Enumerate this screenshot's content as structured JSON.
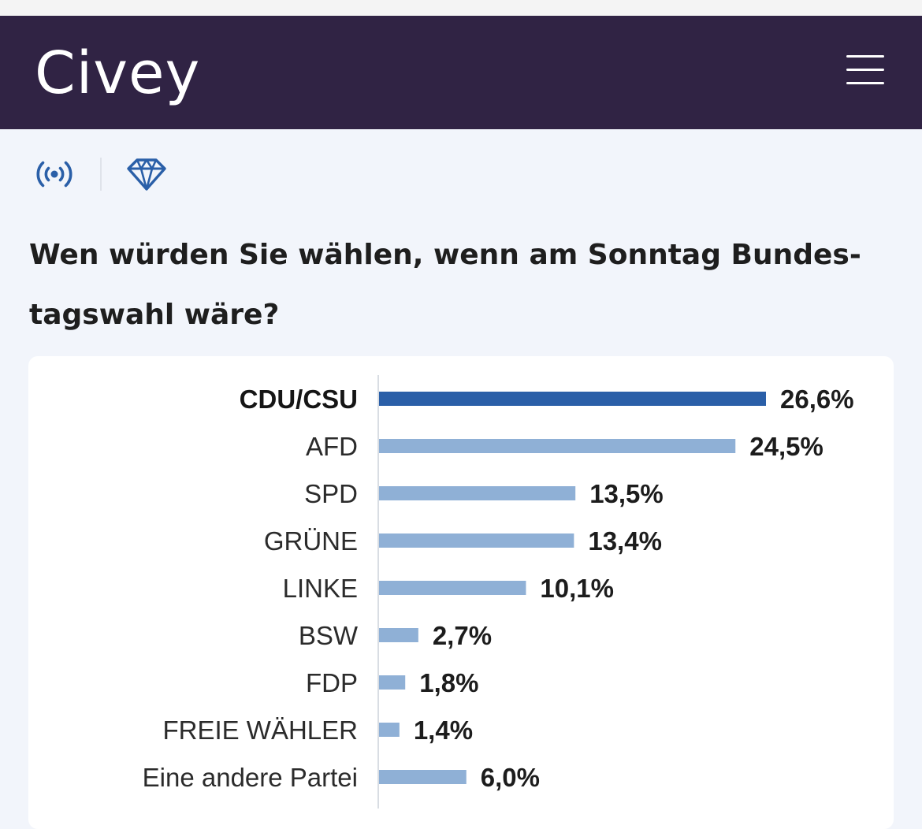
{
  "app": {
    "logo_text": "Civey"
  },
  "icons": {
    "menu": "hamburger-menu-icon",
    "live": "broadcast-icon",
    "premium": "diamond-icon"
  },
  "colors": {
    "header_bg": "#302344",
    "accent": "#2a5fa8",
    "bar": "#8fb0d6"
  },
  "question": {
    "text": "Wen würden Sie wählen, wenn am Sonntag Bundes- tagswahl wäre?"
  },
  "chart_data": {
    "type": "bar",
    "orientation": "horizontal",
    "title": "Wen würden Sie wählen, wenn am Sonntag Bundes- tagswahl wäre?",
    "categories": [
      "CDU/CSU",
      "AFD",
      "SPD",
      "GRÜNE",
      "LINKE",
      "BSW",
      "FDP",
      "FREIE WÄHLER",
      "Eine andere Partei"
    ],
    "values": [
      26.6,
      24.5,
      13.5,
      13.4,
      10.1,
      2.7,
      1.8,
      1.4,
      6.0
    ],
    "value_labels": [
      "26,6%",
      "24,5%",
      "13,5%",
      "13,4%",
      "10,1%",
      "2,7%",
      "1,8%",
      "1,4%",
      "6,0%"
    ],
    "highlight_index": 0,
    "unit": "%",
    "xlim": [
      0,
      26.6
    ],
    "grid": false,
    "legend": "none"
  }
}
